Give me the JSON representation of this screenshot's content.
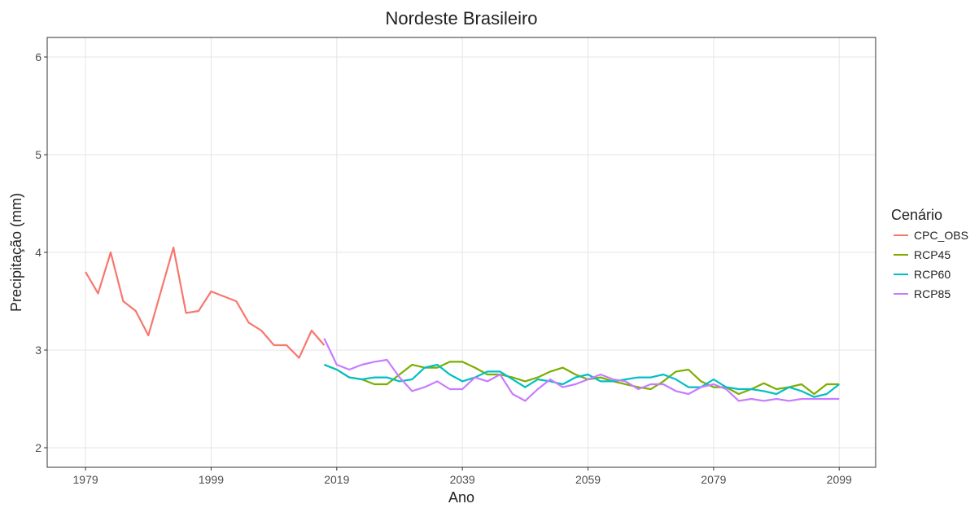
{
  "chart_data": {
    "type": "line",
    "title": "Nordeste Brasileiro",
    "x_label": "Ano",
    "y_label": "Precipitação (mm)",
    "legend_title": "Cenário",
    "legend_position": "right",
    "grid": true,
    "xlim": [
      1972.9,
      2104.8
    ],
    "ylim": [
      1.8,
      6.2
    ],
    "xticks": [
      1979,
      1999,
      2019,
      2039,
      2059,
      2079,
      2099
    ],
    "yticks": [
      2,
      3,
      4,
      5,
      6
    ],
    "x": [
      1979,
      1981,
      1983,
      1985,
      1987,
      1989,
      1991,
      1993,
      1995,
      1997,
      1999,
      2001,
      2003,
      2005,
      2007,
      2009,
      2011,
      2013,
      2015,
      2017,
      2019,
      2021,
      2023,
      2025,
      2027,
      2029,
      2031,
      2033,
      2035,
      2037,
      2039,
      2041,
      2043,
      2045,
      2047,
      2049,
      2051,
      2053,
      2055,
      2057,
      2059,
      2061,
      2063,
      2065,
      2067,
      2069,
      2071,
      2073,
      2075,
      2077,
      2079,
      2081,
      2083,
      2085,
      2087,
      2089,
      2091,
      2093,
      2095,
      2097,
      2099
    ],
    "series": [
      {
        "name": "CPC_OBS",
        "color": "#f8766d",
        "values": [
          3.8,
          3.58,
          4.0,
          3.5,
          3.4,
          3.15,
          3.6,
          4.05,
          3.38,
          3.4,
          3.6,
          3.55,
          3.5,
          3.28,
          3.2,
          3.05,
          3.05,
          2.92,
          3.2,
          3.05,
          null,
          null,
          null,
          null,
          null,
          null,
          null,
          null,
          null,
          null,
          null,
          null,
          null,
          null,
          null,
          null,
          null,
          null,
          null,
          null,
          null,
          null,
          null,
          null,
          null,
          null,
          null,
          null,
          null,
          null,
          null,
          null,
          null,
          null,
          null,
          null,
          null,
          null,
          null,
          null,
          null
        ]
      },
      {
        "name": "RCP45",
        "color": "#7cae00",
        "values": [
          null,
          null,
          null,
          null,
          null,
          null,
          null,
          null,
          null,
          null,
          null,
          null,
          null,
          null,
          null,
          null,
          null,
          null,
          null,
          2.85,
          2.8,
          2.72,
          2.7,
          2.65,
          2.65,
          2.75,
          2.85,
          2.82,
          2.82,
          2.88,
          2.88,
          2.82,
          2.75,
          2.75,
          2.72,
          2.68,
          2.72,
          2.78,
          2.82,
          2.75,
          2.7,
          2.72,
          2.68,
          2.65,
          2.62,
          2.6,
          2.68,
          2.78,
          2.8,
          2.68,
          2.62,
          2.62,
          2.55,
          2.6,
          2.66,
          2.6,
          2.62,
          2.65,
          2.55,
          2.65,
          2.65
        ]
      },
      {
        "name": "RCP60",
        "color": "#00bfc4",
        "values": [
          null,
          null,
          null,
          null,
          null,
          null,
          null,
          null,
          null,
          null,
          null,
          null,
          null,
          null,
          null,
          null,
          null,
          null,
          null,
          2.85,
          2.8,
          2.72,
          2.7,
          2.72,
          2.72,
          2.68,
          2.7,
          2.82,
          2.85,
          2.75,
          2.68,
          2.72,
          2.78,
          2.78,
          2.7,
          2.62,
          2.7,
          2.68,
          2.65,
          2.72,
          2.75,
          2.68,
          2.68,
          2.7,
          2.72,
          2.72,
          2.75,
          2.7,
          2.62,
          2.62,
          2.7,
          2.62,
          2.6,
          2.6,
          2.58,
          2.55,
          2.62,
          2.58,
          2.52,
          2.55,
          2.65
        ]
      },
      {
        "name": "RCP85",
        "color": "#c77cff",
        "values": [
          null,
          null,
          null,
          null,
          null,
          null,
          null,
          null,
          null,
          null,
          null,
          null,
          null,
          null,
          null,
          null,
          null,
          null,
          null,
          3.12,
          2.85,
          2.8,
          2.85,
          2.88,
          2.9,
          2.72,
          2.58,
          2.62,
          2.68,
          2.6,
          2.6,
          2.72,
          2.68,
          2.75,
          2.55,
          2.48,
          2.6,
          2.7,
          2.62,
          2.65,
          2.7,
          2.75,
          2.7,
          2.68,
          2.6,
          2.65,
          2.65,
          2.58,
          2.55,
          2.62,
          2.65,
          2.6,
          2.48,
          2.5,
          2.48,
          2.5,
          2.48,
          2.5,
          2.5,
          2.5,
          2.5
        ]
      }
    ]
  }
}
